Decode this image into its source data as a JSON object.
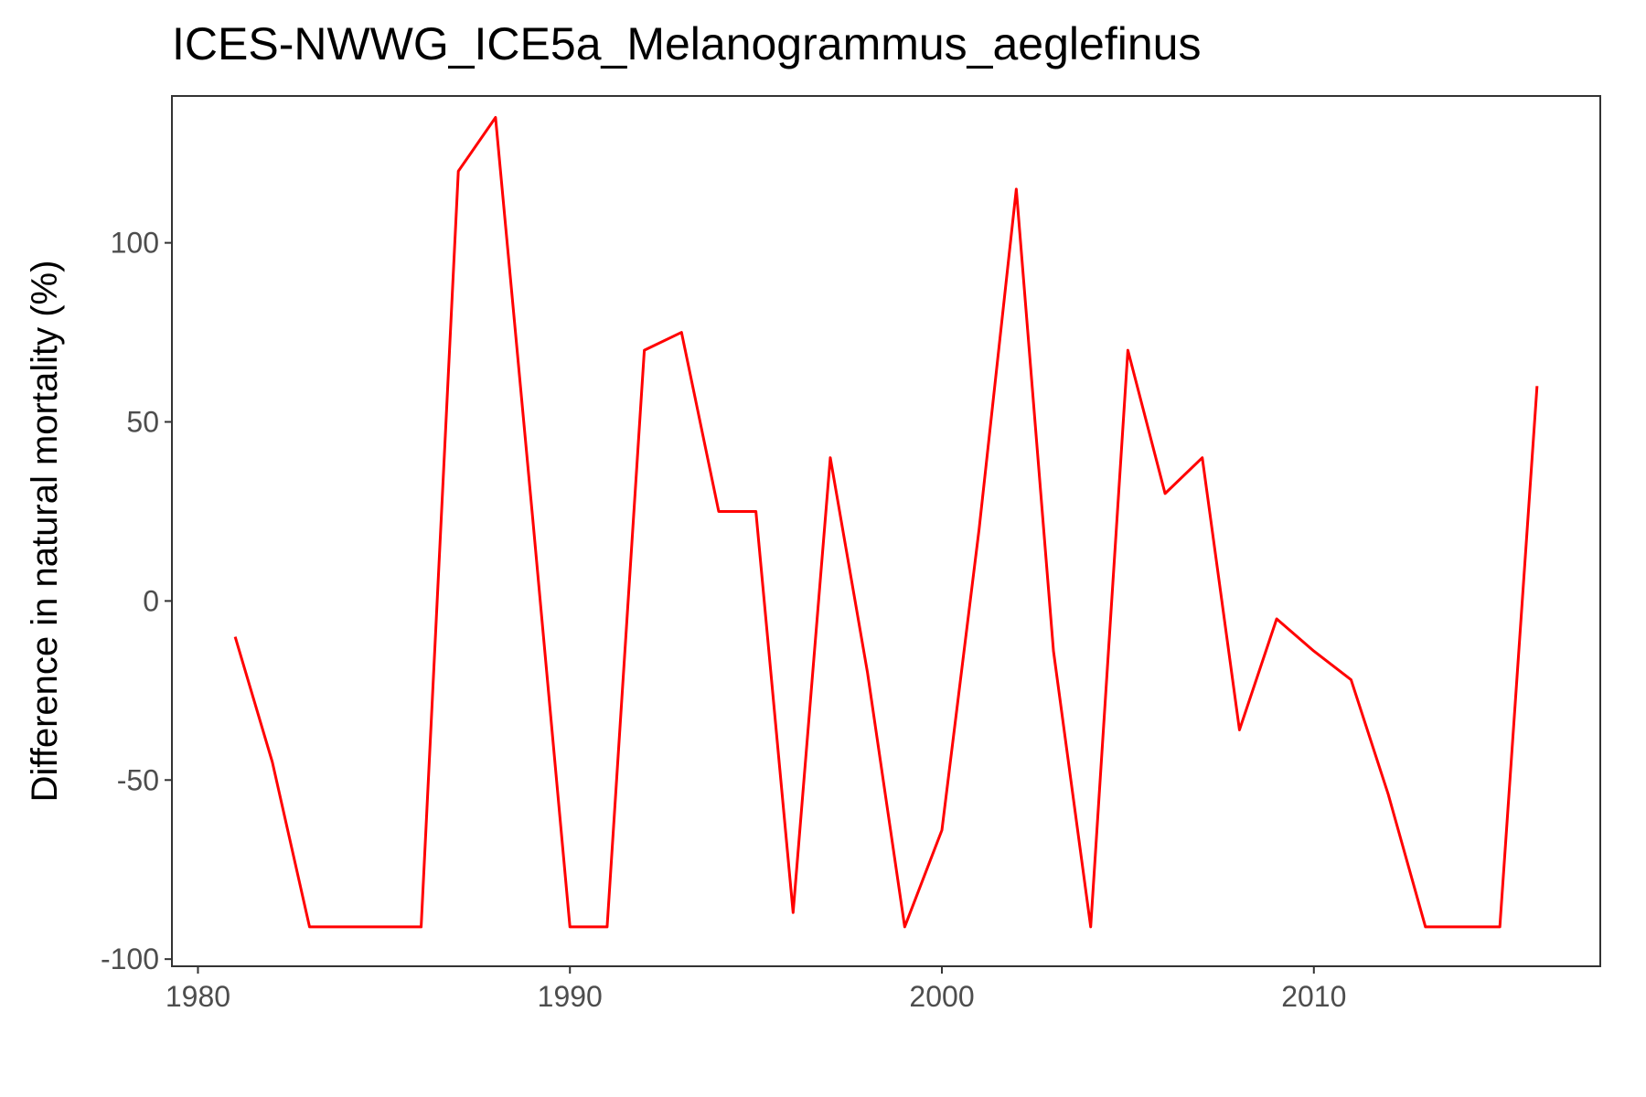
{
  "chart_data": {
    "type": "line",
    "title": "ICES-NWWG_ICE5a_Melanogrammus_aeglefinus",
    "xlabel": "",
    "ylabel": "Difference in natural mortality (%)",
    "xlim": [
      1979.3,
      2017.7
    ],
    "ylim": [
      -102,
      141
    ],
    "x_ticks": [
      1980,
      1990,
      2000,
      2010
    ],
    "x_tick_labels": [
      "1980",
      "1990",
      "2000",
      "2010"
    ],
    "y_ticks": [
      -100,
      -50,
      0,
      50,
      100
    ],
    "y_tick_labels": [
      "-100",
      "-50",
      "0",
      "50",
      "100"
    ],
    "grid": false,
    "panel_border": true,
    "series": [
      {
        "color": "#ff0000",
        "x": [
          1981,
          1982,
          1983,
          1984,
          1985,
          1986,
          1987,
          1988,
          1989,
          1990,
          1991,
          1992,
          1993,
          1994,
          1995,
          1996,
          1997,
          1998,
          1999,
          2000,
          2001,
          2002,
          2003,
          2004,
          2005,
          2006,
          2007,
          2008,
          2009,
          2010,
          2011,
          2012,
          2013,
          2014,
          2015,
          2016
        ],
        "values": [
          -10,
          -45,
          -91,
          -91,
          -91,
          -91,
          120,
          135,
          23,
          -91,
          -91,
          70,
          75,
          25,
          25,
          -87,
          40,
          -20,
          -91,
          -64,
          20,
          115,
          -14,
          -91,
          70,
          30,
          40,
          -36,
          -5,
          -14,
          -22,
          -54,
          -91,
          -91,
          -91,
          60
        ]
      }
    ]
  }
}
